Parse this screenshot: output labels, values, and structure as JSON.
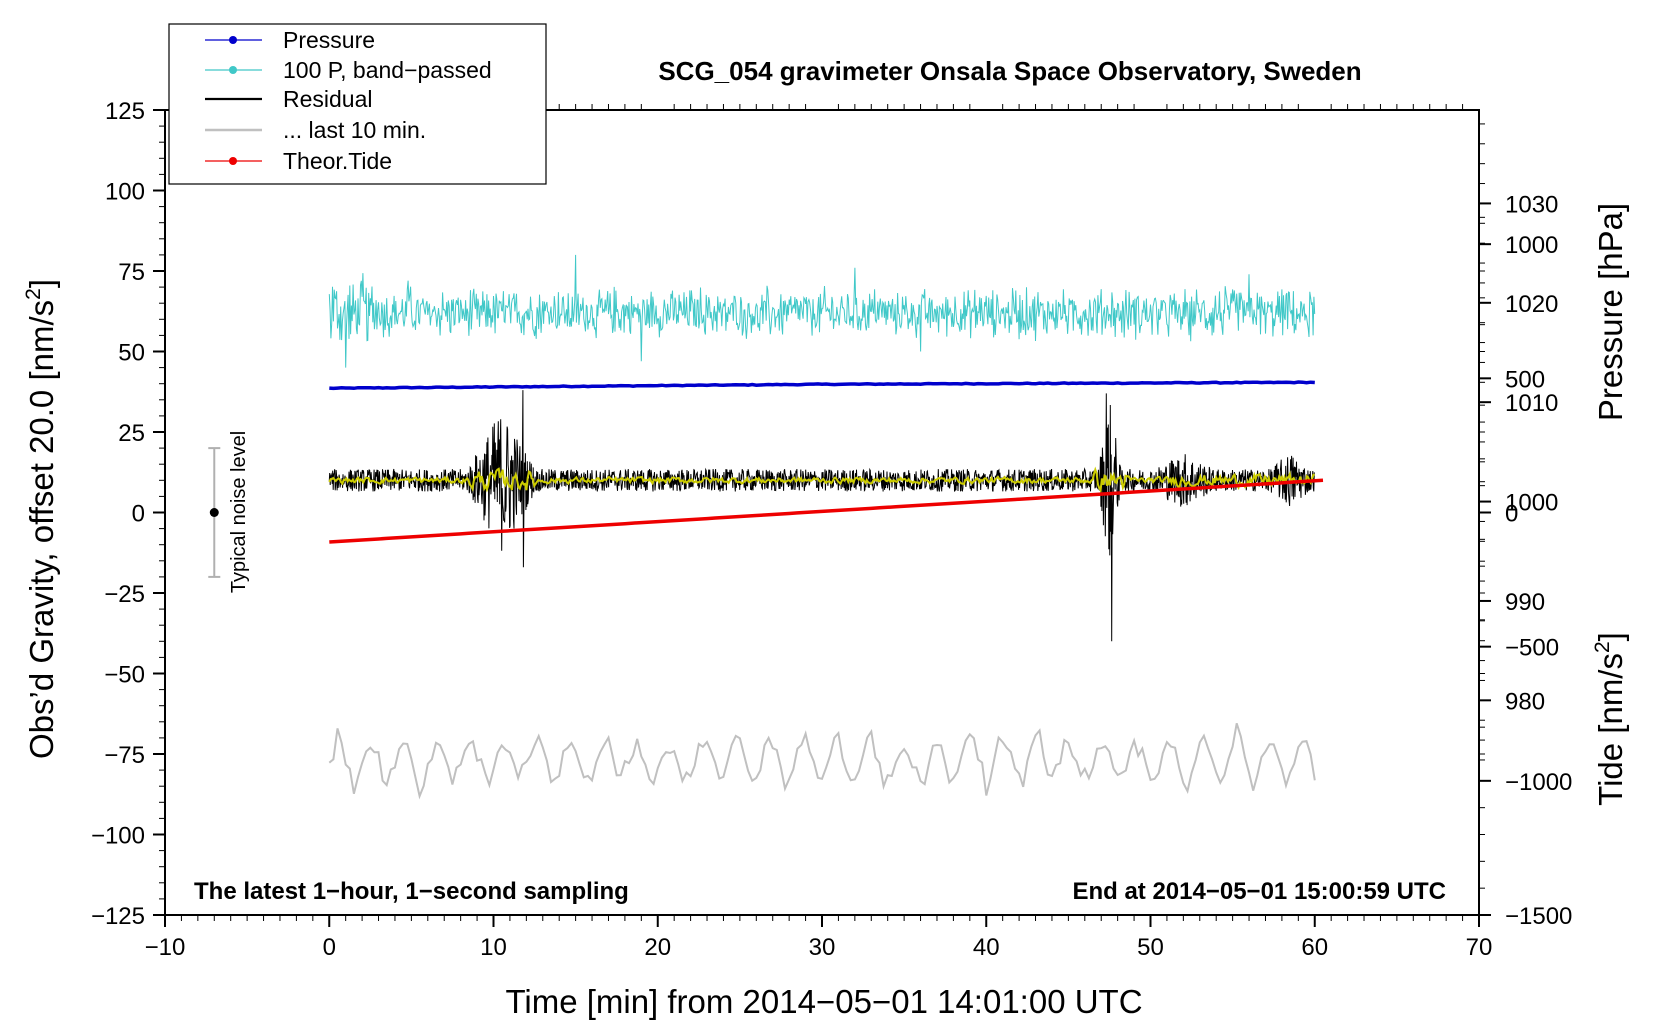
{
  "chart_data": {
    "type": "line",
    "title": "SCG_054 gravimeter Onsala Space Observatory, Sweden",
    "xlabel": "Time [min] from 2014−05−01 14:01:00 UTC",
    "ylabel_main": "Obs’d Gravity, offset 20.0 [nm/s",
    "ylabel_pressure": "Pressure [hPa]",
    "ylabel_tide": "Tide [nm/s",
    "unit_superscript": "2",
    "unit_close": "]",
    "xlim": [
      -10,
      70
    ],
    "ylim": [
      -125,
      125
    ],
    "pressure_lim": [
      958.4,
      1039.4
    ],
    "tide_lim": [
      -1500,
      1500
    ],
    "xticks": [
      "−10",
      "0",
      "10",
      "20",
      "30",
      "40",
      "50",
      "60",
      "70"
    ],
    "xtick_values": [
      -10,
      0,
      10,
      20,
      30,
      40,
      50,
      60,
      70
    ],
    "yticks": [
      "125",
      "100",
      "75",
      "50",
      "25",
      "0",
      "−25",
      "−50",
      "−75",
      "−100",
      "−125"
    ],
    "ytick_values": [
      125,
      100,
      75,
      50,
      25,
      0,
      -25,
      -50,
      -75,
      -100,
      -125
    ],
    "pressure_ticks": [
      "1030",
      "1020",
      "1010",
      "1000",
      "990",
      "980"
    ],
    "pressure_tick_values": [
      1030,
      1020,
      1010,
      1000,
      990,
      980
    ],
    "tide_ticks": [
      "1000",
      "500",
      "0",
      "−500",
      "−1000",
      "−1500"
    ],
    "tide_tick_values": [
      1000,
      500,
      0,
      -500,
      -1000,
      -1500
    ],
    "legend": {
      "position": "top-left",
      "entries": [
        "Pressure",
        "100 P, band−passed",
        "Residual",
        "... last 10 min.",
        "Theor.Tide"
      ]
    },
    "annotations": {
      "bottom_left": "The latest 1−hour, 1−second sampling",
      "bottom_right": "End at 2014−05−01 15:00:59 UTC",
      "noise_label": "Typical noise level"
    },
    "noise_bar": {
      "x": -7,
      "center": 0,
      "low": -20,
      "high": 20
    },
    "series": [
      {
        "name": "Pressure",
        "color": "#0000cc",
        "axis": "pressure",
        "x": [
          0,
          30,
          60
        ],
        "values": [
          1011.4,
          1011.8,
          1012.0
        ]
      },
      {
        "name": "100 P, band−passed",
        "color": "#40c8c8",
        "axis": "main",
        "baseline": 62,
        "amplitude": 6,
        "spikes": [
          [
            1,
            45
          ],
          [
            2,
            67
          ],
          [
            4.8,
            72
          ],
          [
            15,
            80
          ],
          [
            19,
            47
          ],
          [
            32,
            76
          ],
          [
            36,
            50
          ],
          [
            56,
            74
          ]
        ],
        "x_end": 60
      },
      {
        "name": "Residual",
        "color": "#000000",
        "axis": "main",
        "baseline": 10,
        "amplitude": 3.5,
        "events": [
          [
            10.5,
            30,
            2.5
          ],
          [
            47.5,
            35,
            0.8
          ],
          [
            52,
            12,
            3
          ],
          [
            58.5,
            12,
            2
          ]
        ],
        "spikes": [
          [
            11.8,
            38
          ],
          [
            11.8,
            -17
          ],
          [
            47.3,
            37
          ],
          [
            47.6,
            -40
          ]
        ],
        "x_end": 60
      },
      {
        "name": "Residual (smoothed)",
        "color": "#cccc00",
        "axis": "main",
        "baseline": 10,
        "amplitude": 1.5,
        "x_end": 60
      },
      {
        "name": "... last 10 min.",
        "color": "#c0c0c0",
        "axis": "main",
        "baseline": -77,
        "amplitude": 7,
        "x_end": 60
      },
      {
        "name": "Theor.Tide",
        "color": "#ee0000",
        "axis": "tide",
        "x": [
          0,
          60.5
        ],
        "values": [
          -110,
          120
        ]
      }
    ]
  }
}
